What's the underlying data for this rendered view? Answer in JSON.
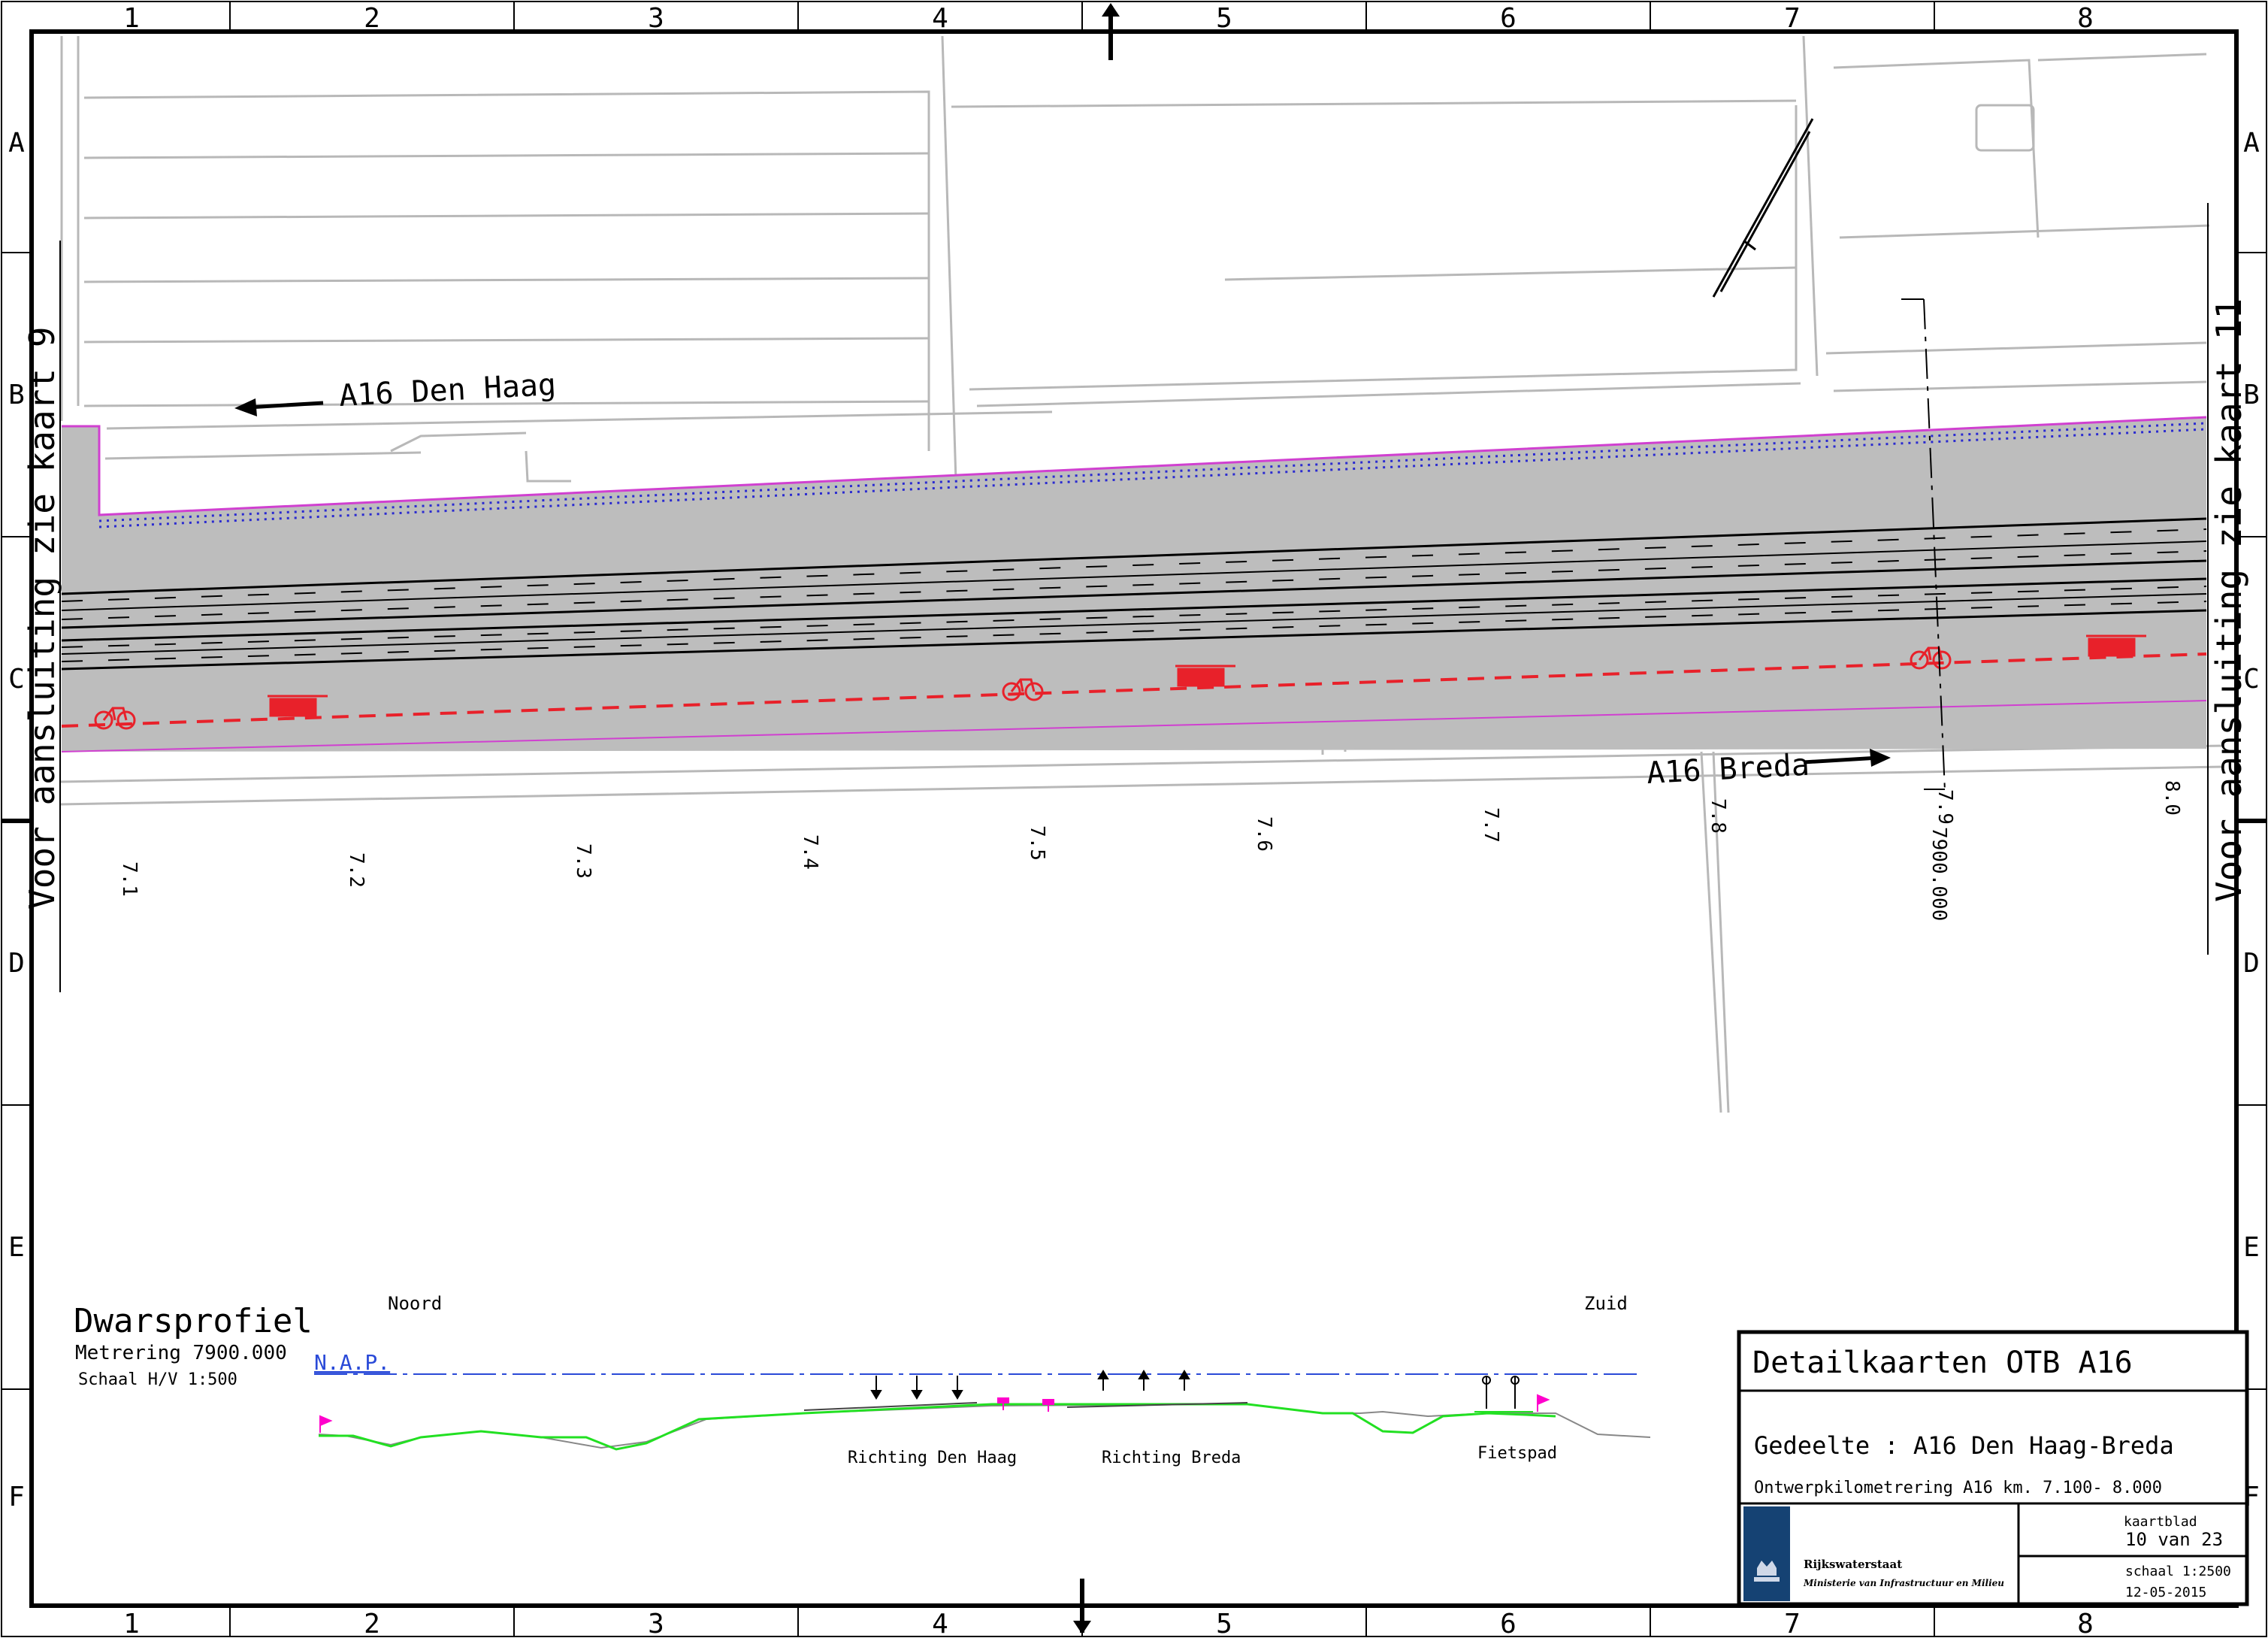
{
  "frame": {
    "columns": [
      "1",
      "2",
      "3",
      "4",
      "5",
      "6",
      "7",
      "8"
    ],
    "rows": [
      "A",
      "B",
      "C",
      "D",
      "E",
      "F"
    ]
  },
  "map": {
    "left_note": "Voor aansluiting zie kaart 9",
    "right_note": "Voor aansluiting zie kaart 11",
    "dir_den_haag": "A16 Den Haag",
    "dir_breda": "A16 Breda",
    "km_labels": [
      "7.1",
      "7.2",
      "7.3",
      "7.4",
      "7.5",
      "7.6",
      "7.7",
      "7.8",
      "7.9",
      "8.0"
    ],
    "section_value": "7900.000",
    "colors": {
      "road_fill": "#bdbdbd",
      "route_line": "#e8212a",
      "boundary": "#d040d0",
      "paving": "#2a2ad0"
    }
  },
  "profile": {
    "title": "Dwarsprofiel",
    "metrering": "Metrering 7900.000",
    "schaal": "Schaal H/V  1:500",
    "noord": "Noord",
    "zuid": "Zuid",
    "nap": "N.A.P.",
    "richting_den_haag": "Richting Den Haag",
    "richting_breda": "Richting Breda",
    "fietspad": "Fietspad",
    "colors": {
      "ground": "#22e022",
      "nap_line": "#2a4ad8",
      "marker": "#ff00cc"
    }
  },
  "title_block": {
    "title": "Detailkaarten OTB A16",
    "gedeelte": "Gedeelte : A16 Den Haag-Breda",
    "km": "Ontwerpkilometrering A16 km.  7.100- 8.000",
    "org_name": "Rijkswaterstaat",
    "org_sub": "Ministerie van Infrastructuur en Milieu",
    "kaartblad_label": "kaartblad",
    "kaartblad_value": "10 van 23",
    "schaal": "schaal 1:2500",
    "date": "12-05-2015",
    "logo_color": "#154273"
  }
}
